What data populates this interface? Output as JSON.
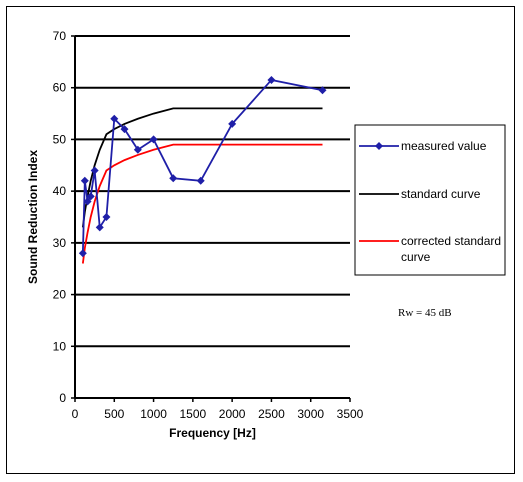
{
  "chart_data": {
    "type": "line",
    "xlabel": "Frequency [Hz]",
    "ylabel": "Sound Reduction Index",
    "xlim": [
      0,
      3500
    ],
    "ylim": [
      0,
      70
    ],
    "xticks": [
      0,
      500,
      1000,
      1500,
      2000,
      2500,
      3000,
      3500
    ],
    "yticks": [
      0,
      10,
      20,
      30,
      40,
      50,
      60,
      70
    ],
    "grid": "horizontal",
    "legend_position": "right",
    "series": [
      {
        "name": "measured value",
        "color": "#1f1fa8",
        "marker": "diamond",
        "x": [
          100,
          125,
          160,
          200,
          250,
          315,
          400,
          500,
          630,
          800,
          1000,
          1250,
          1600,
          2000,
          2500,
          3150
        ],
        "y": [
          28,
          42,
          38,
          39,
          44,
          33,
          35,
          54,
          52,
          48,
          50,
          42.5,
          42,
          53,
          61.5,
          59.5
        ]
      },
      {
        "name": "standard curve",
        "color": "#000000",
        "marker": "none",
        "x": [
          100,
          125,
          160,
          200,
          250,
          315,
          400,
          500,
          630,
          800,
          1000,
          1250,
          3150
        ],
        "y": [
          33,
          36,
          39,
          42,
          45,
          48,
          51,
          52,
          53,
          54,
          55,
          56,
          56
        ]
      },
      {
        "name": "corrected standard curve",
        "color": "#ff0000",
        "marker": "none",
        "x": [
          100,
          125,
          160,
          200,
          250,
          315,
          400,
          500,
          630,
          800,
          1000,
          1250,
          3150
        ],
        "y": [
          26,
          29,
          32,
          35,
          38,
          41,
          44,
          45,
          46,
          47,
          48,
          49,
          49
        ]
      }
    ],
    "annotation": "Rw = 45 dB"
  }
}
